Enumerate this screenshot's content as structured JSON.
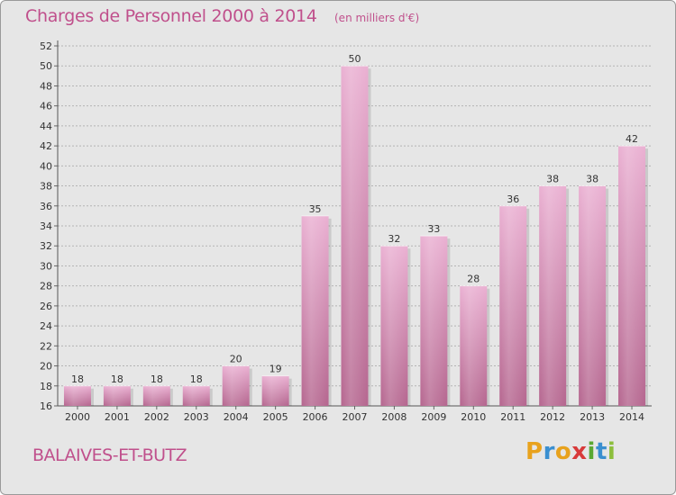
{
  "title": "Charges de Personnel 2000 à 2014",
  "subtitle": "(en milliers d'€)",
  "commune": "BALAIVES-ET-BUTZ",
  "brand": {
    "letters": [
      "P",
      "r",
      "o",
      "x",
      "i",
      "t",
      "i"
    ],
    "colors": [
      "#e8a21d",
      "#3a8fd0",
      "#e8a21d",
      "#d83a3a",
      "#5aa832",
      "#3a8fd0",
      "#8cbe3c"
    ]
  },
  "colors": {
    "bar_light": "#eab0d2",
    "bar_dark": "#b5668f",
    "text": "#c0508c"
  },
  "chart_data": {
    "type": "bar",
    "categories": [
      "2000",
      "2001",
      "2002",
      "2003",
      "2004",
      "2005",
      "2006",
      "2007",
      "2008",
      "2009",
      "2010",
      "2011",
      "2012",
      "2013",
      "2014"
    ],
    "values": [
      18,
      18,
      18,
      18,
      20,
      19,
      35,
      50,
      32,
      33,
      28,
      36,
      38,
      38,
      42
    ],
    "data_labels": [
      "18",
      "18",
      "18",
      "18",
      "20",
      "19",
      "35",
      "50",
      "32",
      "33",
      "28",
      "36",
      "38",
      "38",
      "42"
    ],
    "yticks": [
      "16",
      "18",
      "20",
      "22",
      "24",
      "26",
      "28",
      "30",
      "32",
      "34",
      "36",
      "38",
      "40",
      "42",
      "44",
      "46",
      "48",
      "50",
      "52"
    ],
    "ylim": [
      16,
      52
    ],
    "grid": true
  }
}
